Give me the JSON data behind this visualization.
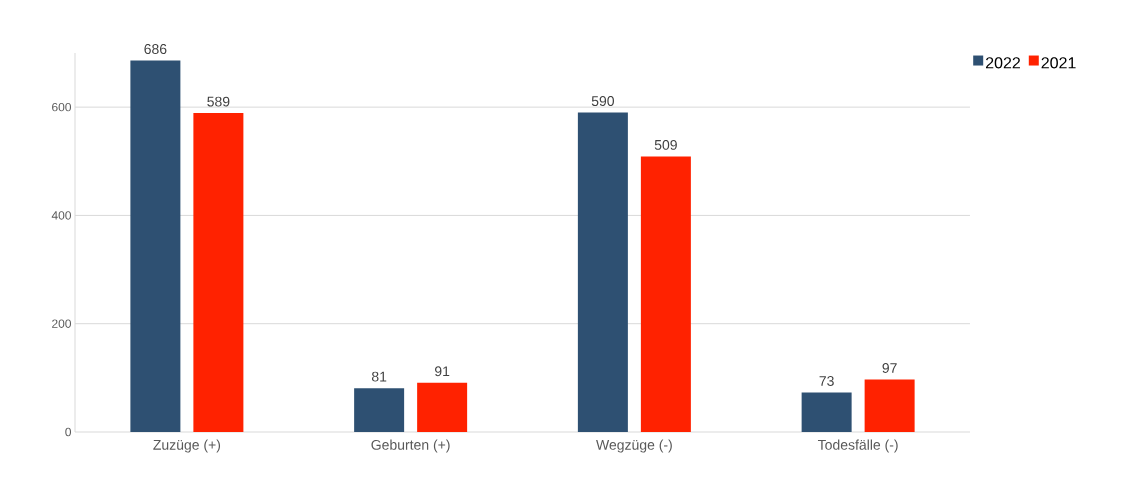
{
  "chart_data": {
    "type": "bar",
    "categories": [
      "Zuzüge (+)",
      "Geburten (+)",
      "Wegzüge (-)",
      "Todesfälle (-)"
    ],
    "series": [
      {
        "name": "2022",
        "color": "#2e5072",
        "values": [
          686,
          81,
          590,
          73
        ]
      },
      {
        "name": "2021",
        "color": "#ff2200",
        "values": [
          589,
          91,
          509,
          97
        ]
      }
    ],
    "ylim": [
      0,
      700
    ],
    "yticks": [
      0,
      200,
      400,
      600
    ],
    "grid": "y",
    "legend": "top right",
    "data_labels": true
  }
}
